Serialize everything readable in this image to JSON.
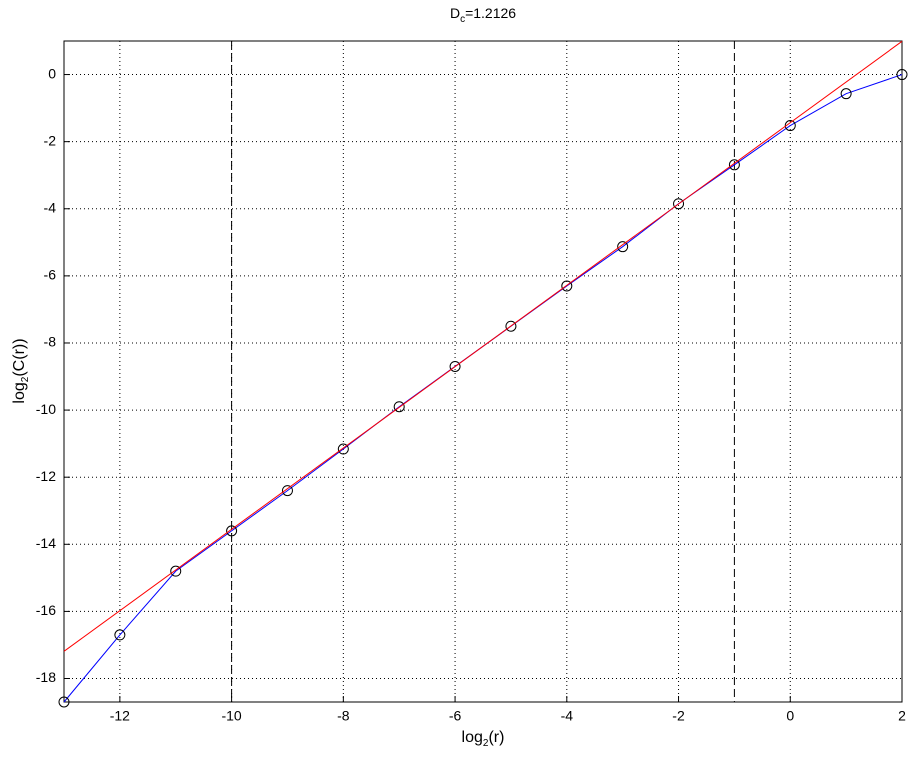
{
  "chart_data": {
    "type": "line",
    "title_parts": [
      "D",
      "c",
      "=1.2126"
    ],
    "xlabel_parts": [
      "log",
      "2",
      "(r)"
    ],
    "ylabel_parts": [
      "log",
      "2",
      "(C(r))"
    ],
    "series": [
      {
        "color": "#0000ff",
        "marker": "circle",
        "x": [
          -13,
          -12,
          -11,
          -10,
          -9,
          -8,
          -7,
          -6,
          -5,
          -4,
          -3,
          -2,
          -1,
          0,
          1,
          2
        ],
        "values": [
          -18.7,
          -16.7,
          -14.8,
          -13.6,
          -12.4,
          -11.16,
          -9.9,
          -8.7,
          -7.5,
          -6.3,
          -5.13,
          -3.85,
          -2.69,
          -1.52,
          -0.57,
          0
        ]
      },
      {
        "color": "#ff0000",
        "marker": "none",
        "x": [
          -13,
          2
        ],
        "values": [
          -17.19,
          0.99
        ]
      }
    ],
    "vlines": [
      -10,
      -1
    ],
    "xlim": [
      -13,
      2
    ],
    "xticks": [
      -12,
      -10,
      -8,
      -6,
      -4,
      -2,
      0,
      2
    ],
    "ylim": [
      -18.7,
      1
    ],
    "yticks": [
      0,
      -2,
      -4,
      -6,
      -8,
      -10,
      -12,
      -14,
      -16,
      -18
    ],
    "grid": true
  }
}
